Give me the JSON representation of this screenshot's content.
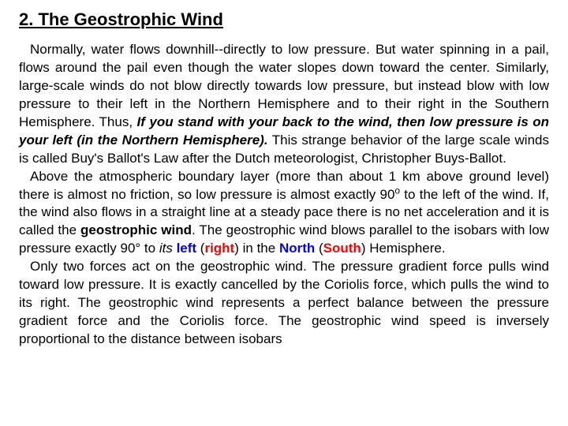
{
  "title": "2. The Geostrophic Wind",
  "paragraphs": {
    "p1a": "Normally, water flows downhill--directly to low pressure. But water spinning in a pail, flows around the pail even though the water slopes down toward the center. Similarly, large-scale winds do not blow directly towards low pressure, but instead blow with low pressure to their left in the Northern Hemisphere and to their right in the Southern Hemisphere. Thus, ",
    "p1b": "If you stand with your back to the wind, then low pressure is on your left (in the Northern Hemisphere).",
    "p1c": " This strange behavior of the large scale winds is called Buy's Ballot's Law after the Dutch meteorologist, Christopher Buys-Ballot.",
    "p2a": "Above the atmospheric boundary layer (more than about 1 km above ground level) there is almost no friction, so low pressure is almost exactly 90",
    "p2a2": " to the left of the wind. If, the wind also flows in a straight line at a steady pace there is no net acceleration and it is called the ",
    "p2b": "geostrophic wind",
    "p2c": ". The geostrophic wind blows parallel to the isobars with low pressure exactly 90° to ",
    "p2d": "its",
    "p2e": " ",
    "p2f": "left",
    "p2g": " (",
    "p2h": "right",
    "p2i": ") in the ",
    "p2j": "North",
    "p2k": " (",
    "p2l": "South",
    "p2m": ") Hemisphere.",
    "p3": "Only two forces act on the geostrophic wind. The pressure gradient force pulls wind toward low pressure. It is exactly cancelled by the Coriolis force, which pulls the wind to its right. The geostrophic wind represents a perfect balance between the pressure gradient force and the Coriolis force. The geostrophic wind speed is inversely proportional to the distance between isobars",
    "deg": "o"
  },
  "colors": {
    "text": "#000000",
    "blue": "#0000ff",
    "red": "#ff0000",
    "background": "#ffffff"
  },
  "typography": {
    "title_fontsize": 22,
    "body_fontsize": 17,
    "font_family": "Arial, sans-serif",
    "line_height": 1.35
  }
}
